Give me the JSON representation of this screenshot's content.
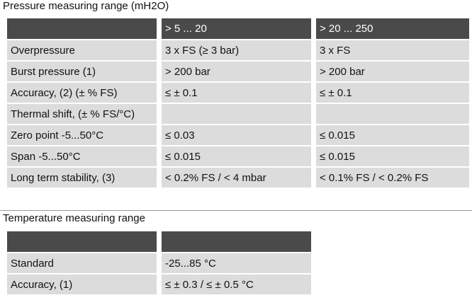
{
  "sections": [
    {
      "title": "Pressure measuring range (mH2O)",
      "header": {
        "col1": "> 5 ... 20",
        "col2": "> 20 ... 250"
      },
      "rows": [
        {
          "label": "Overpressure",
          "col1": "3 x FS (≥ 3 bar)",
          "col2": "3 x FS"
        },
        {
          "label": "Burst pressure (1)",
          "col1": "> 200 bar",
          "col2": "> 200 bar"
        },
        {
          "label": "Accuracy, (2) (± % FS)",
          "col1": "≤ ± 0.1",
          "col2": "≤ ± 0.1"
        },
        {
          "label": "Thermal shift, (± % FS/°C)"
        },
        {
          "label": "Zero point -5...50°C",
          "col1": "≤ 0.03",
          "col2": "≤ 0.015"
        },
        {
          "label": "Span -5...50°C",
          "col1": "≤ 0.015",
          "col2": "≤ 0.015"
        },
        {
          "label": "Long term stability, (3)",
          "col1": "< 0.2% FS / < 4 mbar",
          "col2": "< 0.1% FS / < 0.2% FS"
        }
      ]
    },
    {
      "title": "Temperature measuring range",
      "header": {},
      "rows": [
        {
          "label": "Standard",
          "col1": "-25...85 °C"
        },
        {
          "label": "Accuracy, (1)",
          "col1": "≤ ± 0.3 / ≤ ± 0.5 °C"
        }
      ]
    }
  ]
}
